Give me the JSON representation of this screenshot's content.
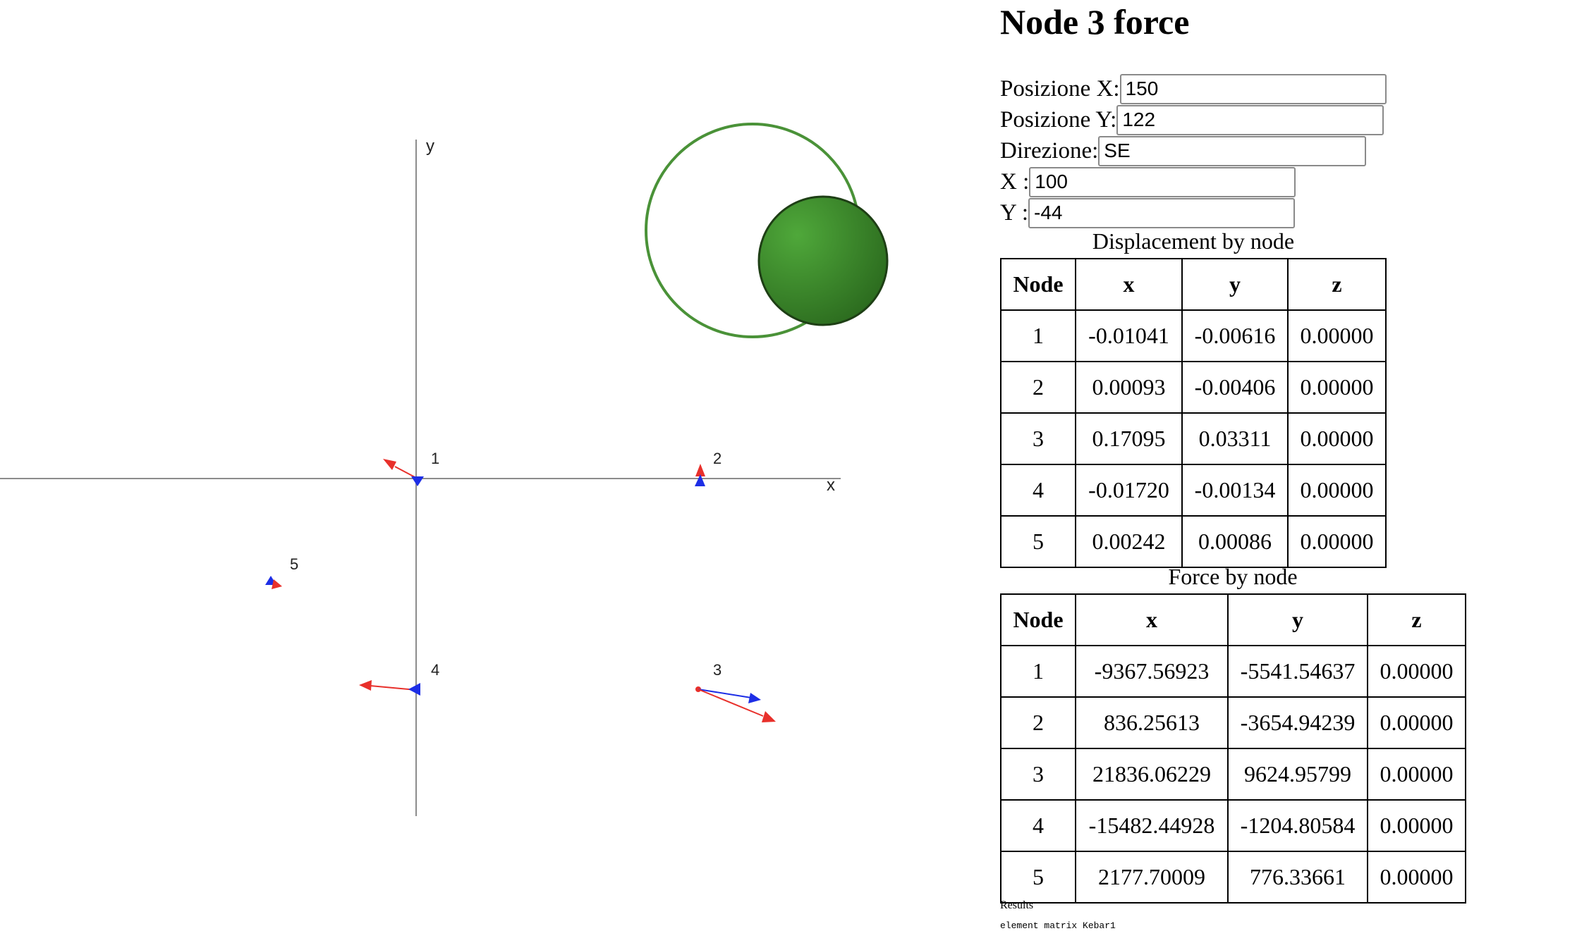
{
  "canvas": {
    "axis_x_label": "x",
    "axis_y_label": "y",
    "node_labels": [
      "1",
      "2",
      "3",
      "4",
      "5"
    ],
    "colors": {
      "axis": "#8c8c8c",
      "force_arrow": "#e8302b",
      "displacement_arrow": "#1d2ee6",
      "circle_outline": "#4a9238",
      "ball_light": "#4fa83a",
      "ball_dark": "#2b6a1e"
    }
  },
  "panel": {
    "title": "Node 3 force",
    "form": {
      "pos_x_label": "Posizione X:",
      "pos_x_value": "150",
      "pos_y_label": "Posizione Y:",
      "pos_y_value": "122",
      "dir_label": "Direzione:",
      "dir_value": "SE",
      "x_label": "X :",
      "x_value": "100",
      "y_label": "Y :",
      "y_value": "-44"
    },
    "displacement_table": {
      "caption": "Displacement by node",
      "headers": [
        "Node",
        "x",
        "y",
        "z"
      ],
      "rows": [
        [
          "1",
          "-0.01041",
          "-0.00616",
          "0.00000"
        ],
        [
          "2",
          "0.00093",
          "-0.00406",
          "0.00000"
        ],
        [
          "3",
          "0.17095",
          "0.03311",
          "0.00000"
        ],
        [
          "4",
          "-0.01720",
          "-0.00134",
          "0.00000"
        ],
        [
          "5",
          "0.00242",
          "0.00086",
          "0.00000"
        ]
      ]
    },
    "force_table": {
      "caption": "Force by node",
      "headers": [
        "Node",
        "x",
        "y",
        "z"
      ],
      "rows": [
        [
          "1",
          "-9367.56923",
          "-5541.54637",
          "0.00000"
        ],
        [
          "2",
          "836.25613",
          "-3654.94239",
          "0.00000"
        ],
        [
          "3",
          "21836.06229",
          "9624.95799",
          "0.00000"
        ],
        [
          "4",
          "-15482.44928",
          "-1204.80584",
          "0.00000"
        ],
        [
          "5",
          "2177.70009",
          "776.33661",
          "0.00000"
        ]
      ]
    },
    "results_label": "Results",
    "code_label": "element matrix Kebar1"
  }
}
